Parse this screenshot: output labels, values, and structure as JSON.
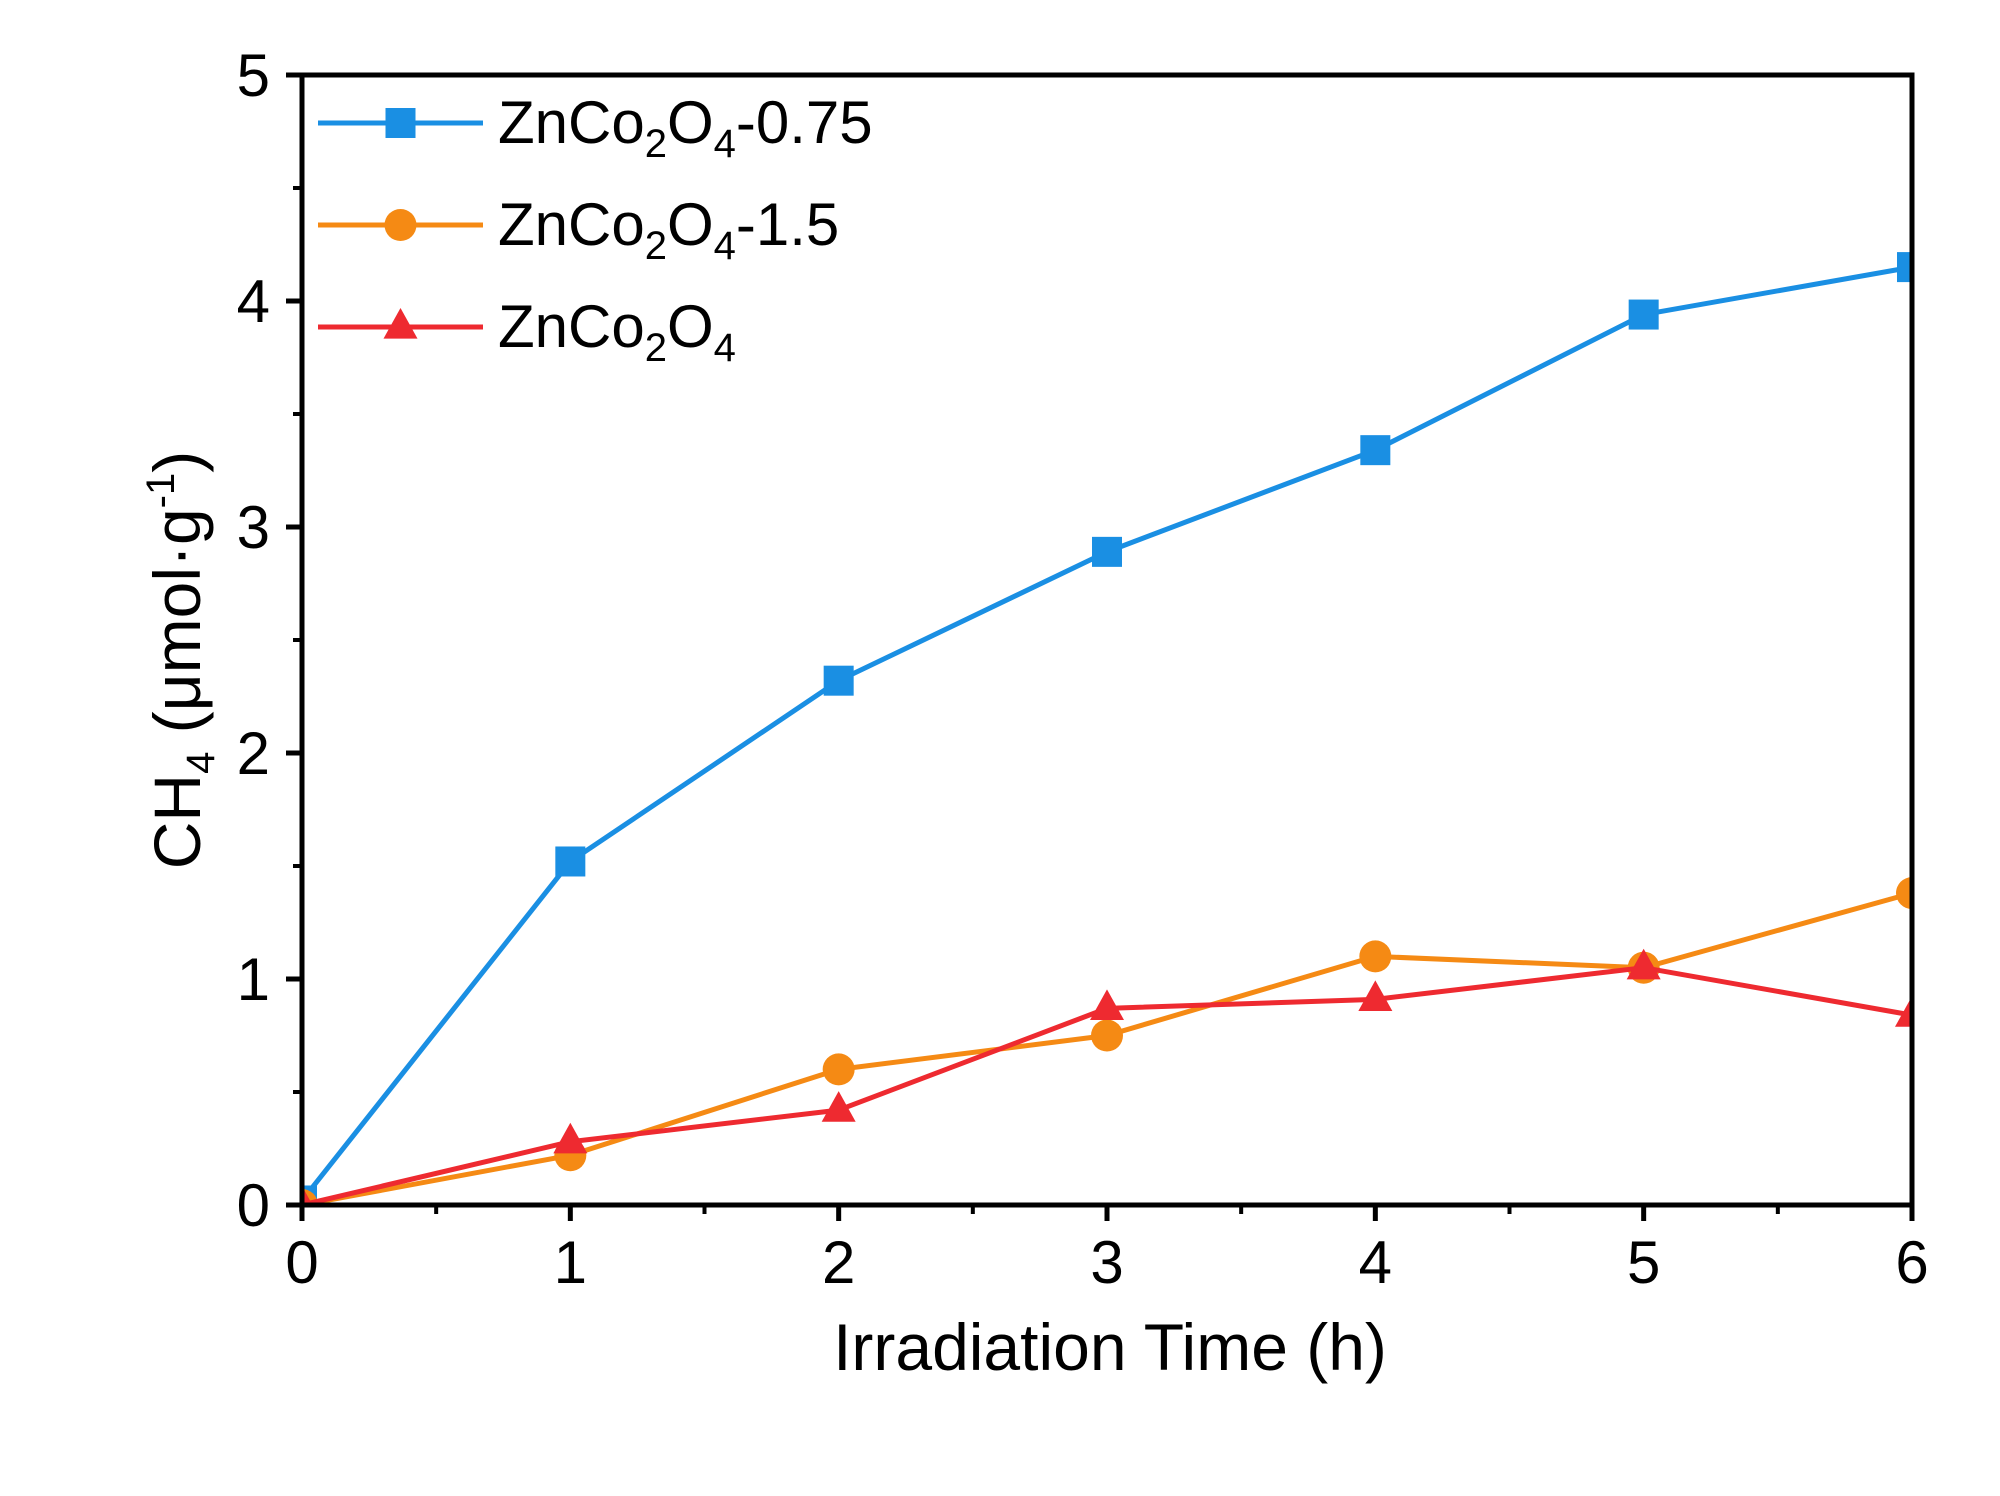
{
  "chart_data": {
    "type": "line",
    "title": "",
    "xlabel": "Irradiation Time (h)",
    "ylabel": {
      "base": "CH",
      "sub": "4",
      "unit_pre": " (μmol·g",
      "sup": "-1",
      "unit_post": ")"
    },
    "xlim": [
      0,
      6
    ],
    "ylim": [
      0,
      5
    ],
    "x_ticks": [
      "0",
      "1",
      "2",
      "3",
      "4",
      "5",
      "6"
    ],
    "y_ticks": [
      "0",
      "1",
      "2",
      "3",
      "4",
      "5"
    ],
    "grid": false,
    "legend_position": "top-left",
    "x": [
      0,
      1,
      2,
      3,
      4,
      5,
      6
    ],
    "series": [
      {
        "name": "ZnCo2O4-0.75",
        "label": {
          "base": "ZnCo",
          "sub1": "2",
          "mid": "O",
          "sub2": "4",
          "suffix": "-0.75"
        },
        "marker": "square",
        "color": "#1a8fe3",
        "values": [
          0.02,
          1.52,
          2.32,
          2.89,
          3.34,
          3.94,
          4.15
        ]
      },
      {
        "name": "ZnCo2O4-1.5",
        "label": {
          "base": "ZnCo",
          "sub1": "2",
          "mid": "O",
          "sub2": "4",
          "suffix": "-1.5"
        },
        "marker": "circle",
        "color": "#f58a14",
        "values": [
          0.0,
          0.22,
          0.6,
          0.75,
          1.1,
          1.05,
          1.38
        ]
      },
      {
        "name": "ZnCo2O4",
        "label": {
          "base": "ZnCo",
          "sub1": "2",
          "mid": "O",
          "sub2": "4",
          "suffix": ""
        },
        "marker": "triangle",
        "color": "#ee2a30",
        "values": [
          0.0,
          0.28,
          0.42,
          0.87,
          0.91,
          1.05,
          0.84
        ]
      }
    ]
  }
}
